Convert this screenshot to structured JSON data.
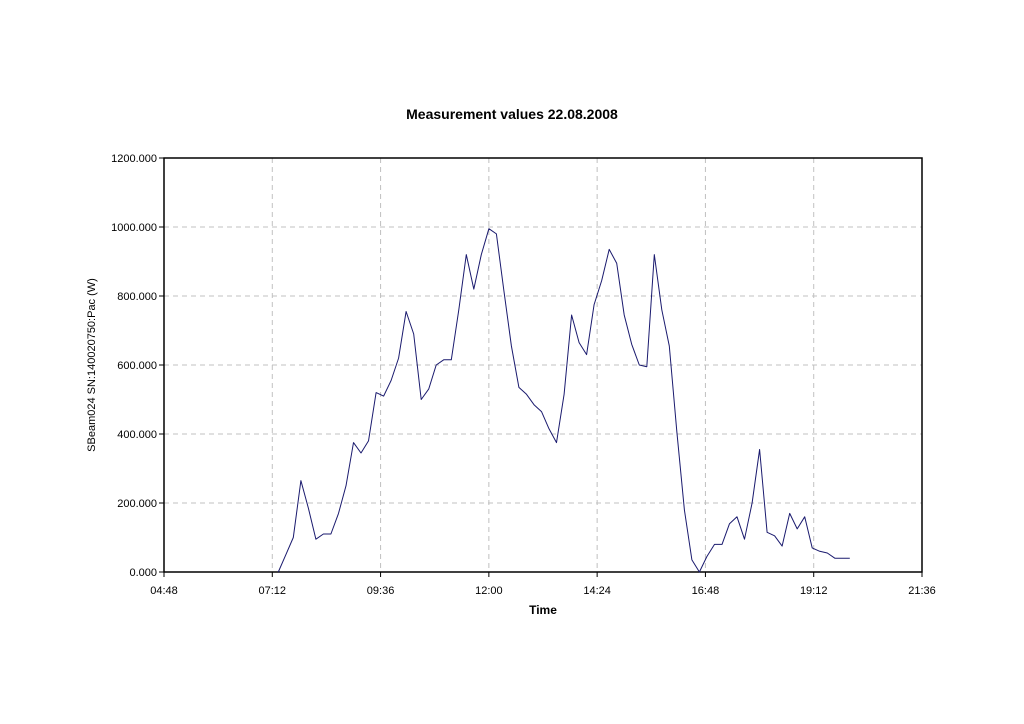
{
  "chart_data": {
    "type": "line",
    "title": "Measurement values 22.08.2008",
    "xlabel": "Time",
    "ylabel": "SBeam024 SN:140020750:Pac (W)",
    "xlim": [
      "04:48",
      "21:36"
    ],
    "ylim": [
      0,
      1200
    ],
    "x_ticks": [
      "04:48",
      "07:12",
      "09:36",
      "12:00",
      "14:24",
      "16:48",
      "19:12",
      "21:36"
    ],
    "y_ticks": [
      "0.000",
      "200.000",
      "400.000",
      "600.000",
      "800.000",
      "1000.000",
      "1200.000"
    ],
    "grid": true,
    "line_color": "#1a1a6e",
    "series": [
      {
        "x": [
          "07:20",
          "07:30",
          "07:40",
          "07:50",
          "08:00",
          "08:10",
          "08:20",
          "08:30",
          "08:40",
          "08:50",
          "09:00",
          "09:10",
          "09:20",
          "09:30",
          "09:40",
          "09:50",
          "10:00",
          "10:10",
          "10:20",
          "10:30",
          "10:40",
          "10:50",
          "11:00",
          "11:10",
          "11:20",
          "11:30",
          "11:40",
          "11:50",
          "12:00",
          "12:10",
          "12:20",
          "12:30",
          "12:40",
          "12:50",
          "13:00",
          "13:10",
          "13:20",
          "13:30",
          "13:40",
          "13:50",
          "14:00",
          "14:10",
          "14:20",
          "14:30",
          "14:40",
          "14:50",
          "15:00",
          "15:10",
          "15:20",
          "15:30",
          "15:40",
          "15:50",
          "16:00",
          "16:10",
          "16:20",
          "16:30",
          "16:40",
          "16:50",
          "17:00",
          "17:10",
          "17:20",
          "17:30",
          "17:40",
          "17:50",
          "18:00",
          "18:10",
          "18:20",
          "18:30",
          "18:40",
          "18:50",
          "19:00",
          "19:10",
          "19:20",
          "19:30",
          "19:40",
          "19:50",
          "20:00"
        ],
        "values": [
          0,
          50,
          100,
          265,
          185,
          95,
          110,
          110,
          170,
          250,
          375,
          345,
          380,
          520,
          510,
          555,
          620,
          755,
          690,
          500,
          530,
          600,
          615,
          615,
          760,
          920,
          820,
          920,
          995,
          980,
          815,
          655,
          535,
          515,
          485,
          465,
          415,
          375,
          515,
          745,
          665,
          630,
          775,
          845,
          935,
          895,
          745,
          660,
          600,
          595,
          920,
          760,
          655,
          405,
          180,
          35,
          0,
          45,
          80,
          80,
          140,
          160,
          95,
          200,
          355,
          115,
          105,
          75,
          170,
          125,
          160,
          70,
          60,
          55,
          40,
          40,
          40
        ]
      }
    ]
  }
}
